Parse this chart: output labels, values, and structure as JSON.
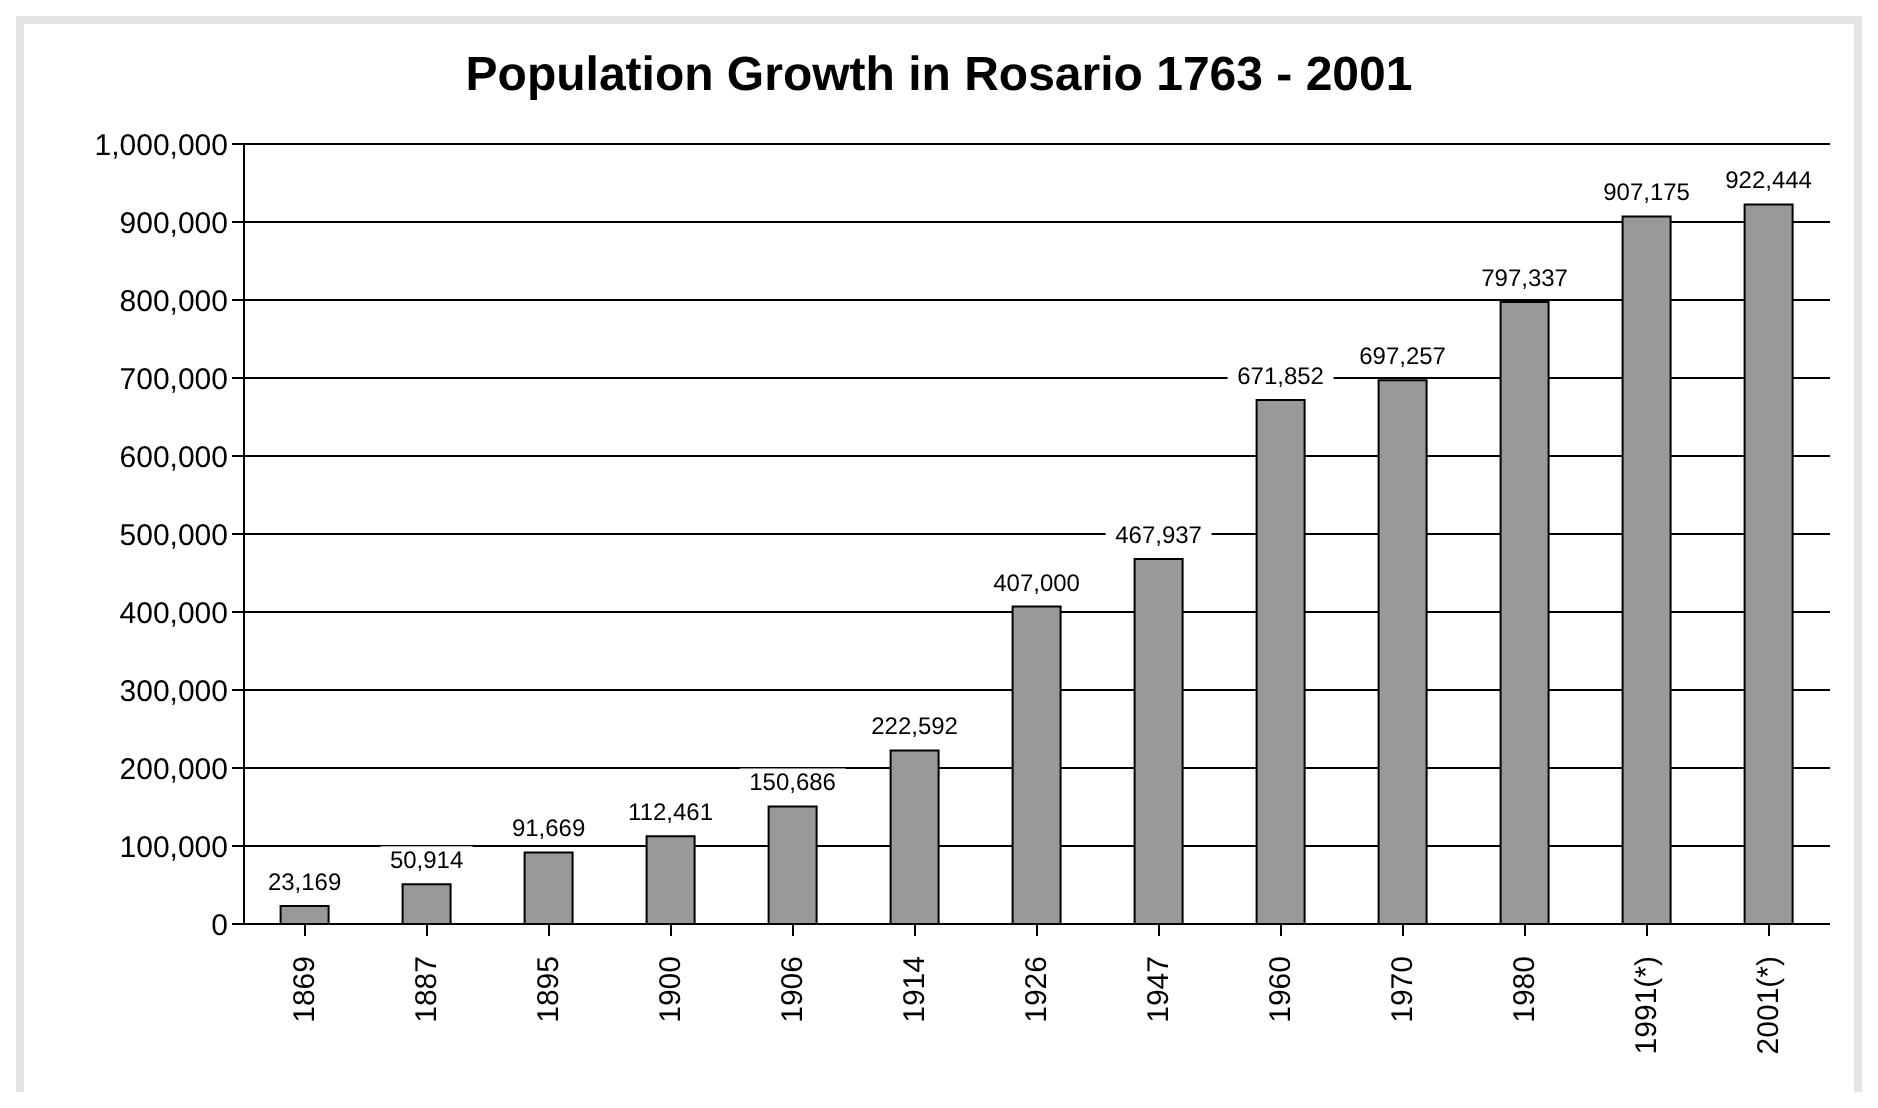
{
  "chart_data": {
    "type": "bar",
    "title": "Population Growth in Rosario 1763 - 2001",
    "categories": [
      "1869",
      "1887",
      "1895",
      "1900",
      "1906",
      "1914",
      "1926",
      "1947",
      "1960",
      "1970",
      "1980",
      "1991(*)",
      "2001(*)"
    ],
    "values": [
      23169,
      50914,
      91669,
      112461,
      150686,
      222592,
      407000,
      467937,
      671852,
      697257,
      797337,
      907175,
      922444
    ],
    "value_labels": [
      "23,169",
      "50,914",
      "91,669",
      "112,461",
      "150,686",
      "222,592",
      "407,000",
      "467,937",
      "671,852",
      "697,257",
      "797,337",
      "907,175",
      "922,444"
    ],
    "color": "#999999",
    "ylim": [
      0,
      1000000
    ],
    "yticks": [
      0,
      {
        "value": 100000,
        "label": "100,000"
      },
      {
        "value": 200000,
        "label": "200,000"
      },
      {
        "value": 300000,
        "label": "300,000"
      },
      {
        "value": 400000,
        "label": "400,000"
      },
      {
        "value": 500000,
        "label": "500,000"
      },
      {
        "value": 600000,
        "label": "600,000"
      },
      {
        "value": 700000,
        "label": "700,000"
      },
      {
        "value": 800000,
        "label": "800,000"
      },
      {
        "value": 900000,
        "label": "900,000"
      },
      {
        "value": 1000000,
        "label": "1,000,000"
      }
    ],
    "grid": "y"
  }
}
